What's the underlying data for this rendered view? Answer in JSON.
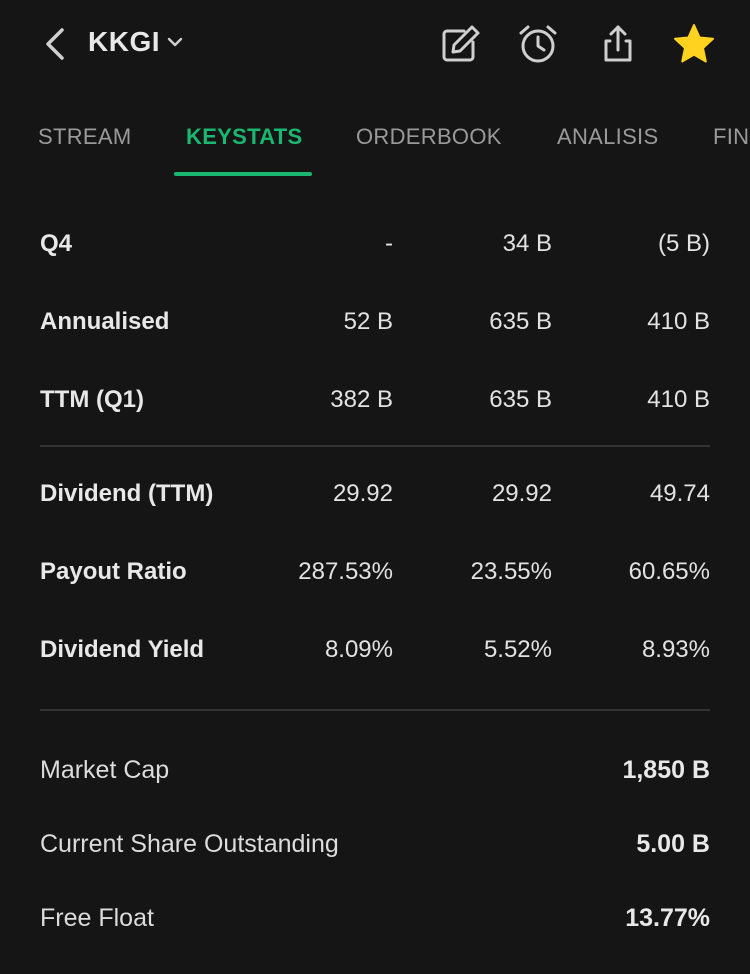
{
  "header": {
    "ticker": "KKGI",
    "icons": [
      "back-chevron-icon",
      "edit-icon",
      "alarm-clock-icon",
      "share-icon",
      "star-icon"
    ],
    "star_color": "#FFD21F"
  },
  "tabs": [
    {
      "label": "STREAM"
    },
    {
      "label": "KEYSTATS",
      "active": true
    },
    {
      "label": "ORDERBOOK"
    },
    {
      "label": "ANALISIS"
    },
    {
      "label": "FIN"
    }
  ],
  "accent_color": "#19B76F",
  "table_rows": [
    {
      "label": "Q4",
      "values": [
        "-",
        "34 B",
        "(5 B)"
      ]
    },
    {
      "label": "Annualised",
      "values": [
        "52 B",
        "635 B",
        "410 B"
      ]
    },
    {
      "label": "TTM (Q1)",
      "values": [
        "382 B",
        "635 B",
        "410 B"
      ]
    },
    {
      "label": "Dividend (TTM)",
      "values": [
        "29.92",
        "29.92",
        "49.74"
      ]
    },
    {
      "label": "Payout Ratio",
      "values": [
        "287.53%",
        "23.55%",
        "60.65%"
      ]
    },
    {
      "label": "Dividend Yield",
      "values": [
        "8.09%",
        "5.52%",
        "8.93%"
      ]
    }
  ],
  "summary": [
    {
      "label": "Market Cap",
      "value": "1,850 B"
    },
    {
      "label": "Current Share Outstanding",
      "value": "5.00 B"
    },
    {
      "label": "Free Float",
      "value": "13.77%"
    }
  ]
}
